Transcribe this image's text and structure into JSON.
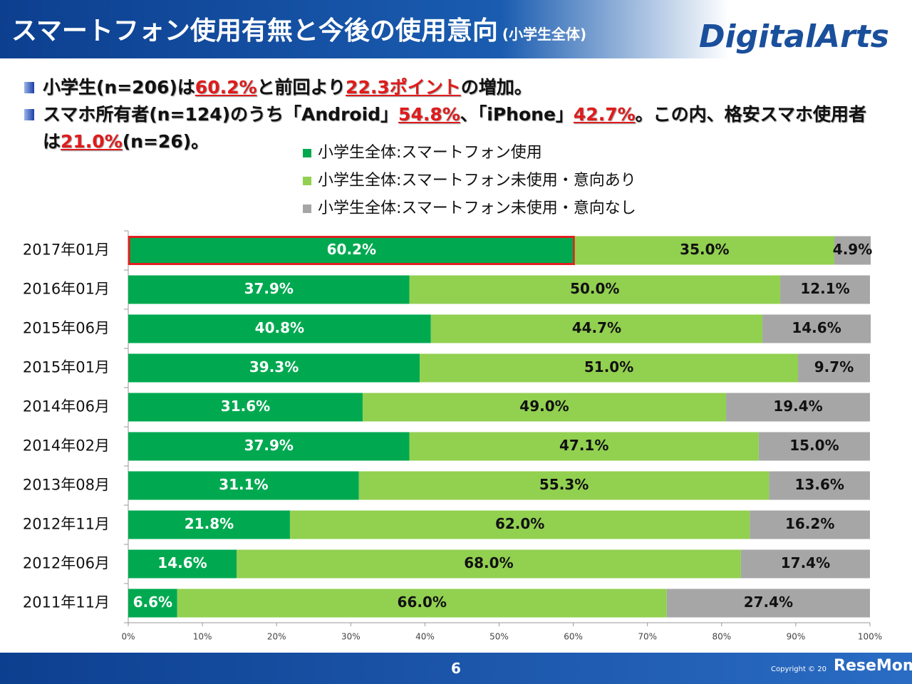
{
  "header": {
    "title": "スマートフォン使用有無と今後の使用意向",
    "subtitle": "(小学生全体)",
    "logo": "DigitalArts"
  },
  "bullets": [
    {
      "segments": [
        {
          "text": "小学生(n=206)は"
        },
        {
          "text": "60.2%",
          "emphasis": true
        },
        {
          "text": "と前回より"
        },
        {
          "text": "22.3ポイント",
          "emphasis": true
        },
        {
          "text": "の増加。"
        }
      ]
    },
    {
      "segments": [
        {
          "text": "スマホ所有者(n=124)のうち「Android」"
        },
        {
          "text": "54.8%",
          "emphasis": true
        },
        {
          "text": "、「iPhone」"
        },
        {
          "text": "42.7%",
          "emphasis": true
        },
        {
          "text": "。この内、格安スマホ使用者は"
        },
        {
          "text": "21.0%",
          "emphasis": true
        },
        {
          "text": "(n=26)。"
        }
      ]
    }
  ],
  "chart_data": {
    "type": "stacked-bar-horizontal",
    "categories": [
      "2017年01月",
      "2016年01月",
      "2015年06月",
      "2015年01月",
      "2014年06月",
      "2014年02月",
      "2013年08月",
      "2012年11月",
      "2012年06月",
      "2011年11月"
    ],
    "series": [
      {
        "name": "小学生全体:スマートフォン使用",
        "color": "#00a950",
        "label_color": "#ffffff",
        "values": [
          60.2,
          37.9,
          40.8,
          39.3,
          31.6,
          37.9,
          31.1,
          21.8,
          14.6,
          6.6
        ],
        "value_labels": [
          "60.2%",
          "37.9%",
          "40.8%",
          "39.3%",
          "31.6%",
          "37.9%",
          "31.1%",
          "21.8%",
          "14.6%",
          "6.6%"
        ]
      },
      {
        "name": "小学生全体:スマートフォン未使用・意向あり",
        "color": "#92d050",
        "label_color": "#111111",
        "values": [
          35.0,
          50.0,
          44.7,
          51.0,
          49.0,
          47.1,
          55.3,
          62.0,
          68.0,
          66.0
        ],
        "value_labels": [
          "35.0%",
          "50.0%",
          "44.7%",
          "51.0%",
          "49.0%",
          "47.1%",
          "55.3%",
          "62.0%",
          "68.0%",
          "66.0%"
        ]
      },
      {
        "name": "小学生全体:スマートフォン未使用・意向なし",
        "color": "#a6a6a6",
        "label_color": "#111111",
        "values": [
          4.9,
          12.1,
          14.6,
          9.7,
          19.4,
          15.0,
          13.6,
          16.2,
          17.4,
          27.4
        ],
        "value_labels": [
          "4.9%",
          "12.1%",
          "14.6%",
          "9.7%",
          "19.4%",
          "15.0%",
          "13.6%",
          "16.2%",
          "17.4%",
          "27.4%"
        ]
      }
    ],
    "xlim": [
      0,
      100
    ],
    "xticks": [
      {
        "value": 0,
        "label": "0%"
      },
      {
        "value": 10,
        "label": "10%"
      },
      {
        "value": 20,
        "label": "20%"
      },
      {
        "value": 30,
        "label": "30%"
      },
      {
        "value": 40,
        "label": "40%"
      },
      {
        "value": 50,
        "label": "50%"
      },
      {
        "value": 60,
        "label": "60%"
      },
      {
        "value": 70,
        "label": "70%"
      },
      {
        "value": 80,
        "label": "80%"
      },
      {
        "value": 90,
        "label": "90%"
      },
      {
        "value": 100,
        "label": "100%"
      }
    ]
  },
  "footer": {
    "page": "6",
    "copyright": "Copyright © 20",
    "watermark": "ReseMom"
  }
}
